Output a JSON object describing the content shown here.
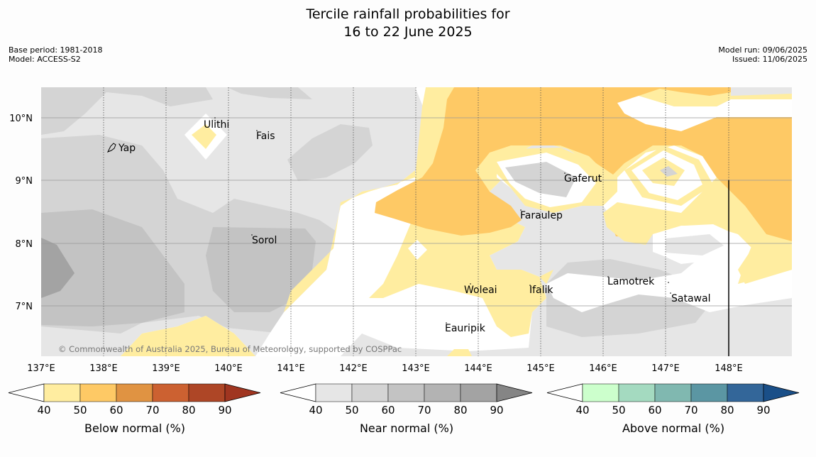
{
  "title_line1": "Tercile rainfall probabilities for",
  "title_line2": "16 to 22 June 2025",
  "base_period": "Base period: 1981-2018",
  "model": "Model: ACCESS-S2",
  "model_run": "Model run: 09/06/2025",
  "issued": "Issued: 11/06/2025",
  "copyright": "© Commonwealth of Australia 2025, Bureau of Meteorology, supported by COSPPac",
  "lat_labels": [
    "10°N",
    "9°N",
    "8°N",
    "7°N"
  ],
  "lon_labels": [
    "137°E",
    "138°E",
    "139°E",
    "140°E",
    "141°E",
    "142°E",
    "143°E",
    "144°E",
    "145°E",
    "146°E",
    "147°E",
    "148°E"
  ],
  "places": [
    {
      "name": "Yap"
    },
    {
      "name": "Ulithi"
    },
    {
      "name": "Fais"
    },
    {
      "name": "Sorol"
    },
    {
      "name": "Gaferut"
    },
    {
      "name": "Faraulep"
    },
    {
      "name": "Woleai"
    },
    {
      "name": "Ifalik"
    },
    {
      "name": "Lamotrek"
    },
    {
      "name": "Satawal"
    },
    {
      "name": "Eauripik"
    }
  ],
  "colorbars": [
    {
      "label": "Below normal (%)",
      "ticks": [
        "40",
        "50",
        "60",
        "70",
        "80",
        "90"
      ],
      "colors": [
        "#ffeda0",
        "#fec965",
        "#e09342",
        "#cc6131",
        "#ae4626",
        "#a03520"
      ]
    },
    {
      "label": "Near normal (%)",
      "ticks": [
        "40",
        "50",
        "60",
        "70",
        "80",
        "90"
      ],
      "colors": [
        "#e6e6e6",
        "#d4d4d4",
        "#c3c3c3",
        "#b3b3b3",
        "#a3a3a3",
        "#858585"
      ]
    },
    {
      "label": "Above normal (%)",
      "ticks": [
        "40",
        "50",
        "60",
        "70",
        "80",
        "90"
      ],
      "colors": [
        "#ccffcc",
        "#a4dac0",
        "#80b8b0",
        "#5b96a3",
        "#336699",
        "#1a4f88"
      ]
    }
  ]
}
